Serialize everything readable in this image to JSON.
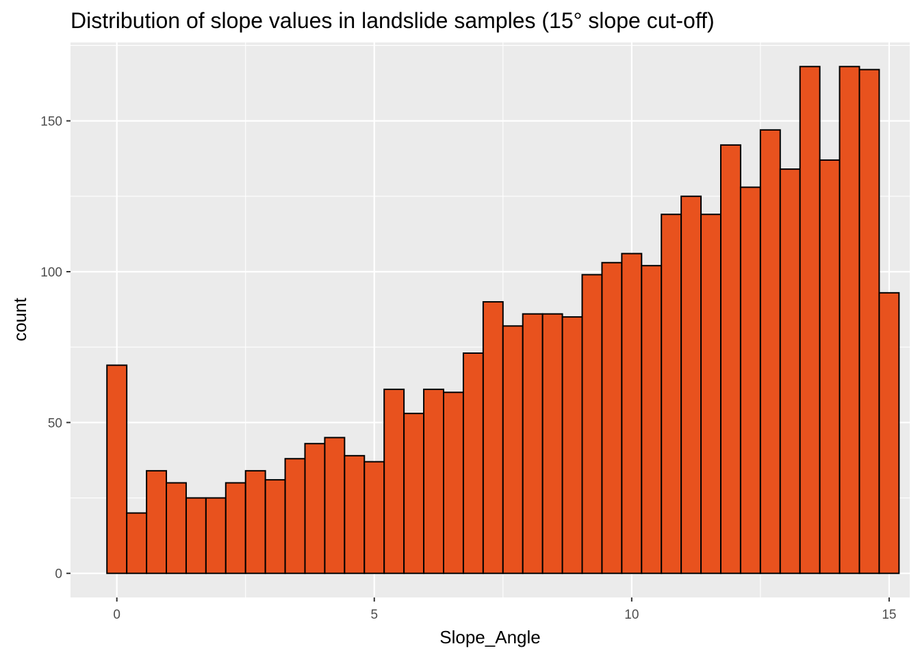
{
  "chart_data": {
    "type": "bar",
    "title": "Distribution of slope values in landslide samples (15° slope cut-off)",
    "xlabel": "Slope_Angle",
    "ylabel": "count",
    "xlim": [
      -0.9,
      15.4
    ],
    "ylim": [
      -8,
      176
    ],
    "x_ticks": [
      0,
      5,
      10,
      15
    ],
    "x_tick_labels": [
      "0",
      "5",
      "10",
      "15"
    ],
    "y_ticks": [
      0,
      50,
      100,
      150
    ],
    "y_tick_labels": [
      "0",
      "50",
      "100",
      "150"
    ],
    "bin_width": 0.3846,
    "bin_start": -0.1923,
    "values": [
      69,
      20,
      34,
      30,
      25,
      25,
      30,
      34,
      31,
      38,
      43,
      45,
      39,
      37,
      61,
      53,
      61,
      60,
      73,
      90,
      82,
      86,
      86,
      85,
      99,
      103,
      106,
      102,
      119,
      125,
      119,
      142,
      128,
      147,
      134,
      168,
      137,
      168,
      167,
      93
    ],
    "grid": true,
    "colors": {
      "fill": "#E8521E",
      "outline": "#000000",
      "panel": "#EBEBEB",
      "grid": "#FFFFFF"
    }
  }
}
